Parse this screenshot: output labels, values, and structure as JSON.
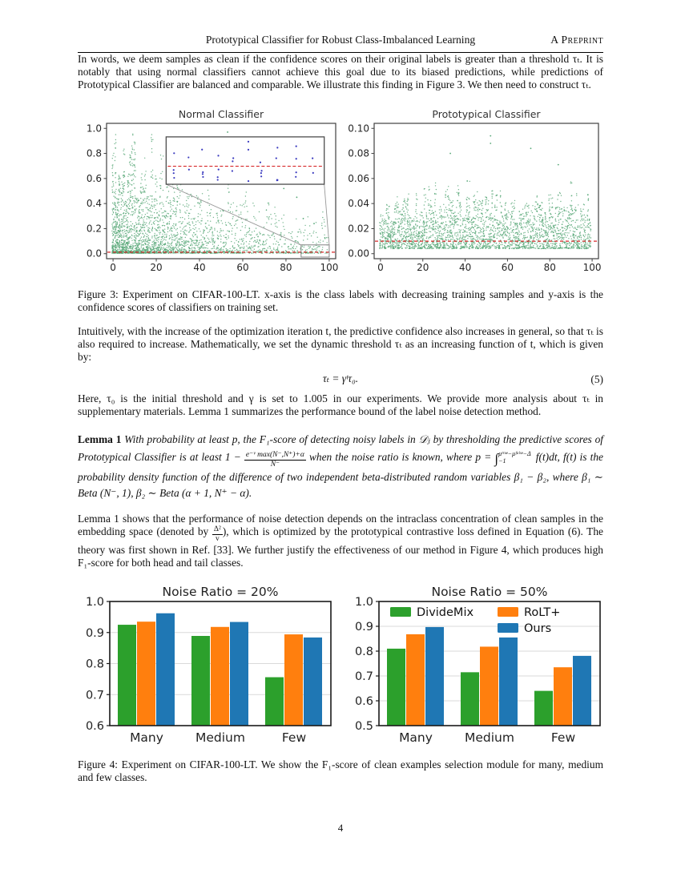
{
  "header": {
    "title": "Prototypical Classifier for Robust Class-Imbalanced Learning",
    "preprint": "A Preprint"
  },
  "body": {
    "p1": "In words, we deem samples as clean if the confidence scores on their original labels is greater than a threshold τₜ. It is notably that using normal classifiers cannot achieve this goal due to its biased predictions, while predictions of Prototypical Classifier are balanced and comparable. We illustrate this finding in Figure 3. We then need to construct τₜ.",
    "p2": "Intuitively, with the increase of the optimization iteration t, the predictive confidence also increases in general, so that τₜ is also required to increase. Mathematically, we set the dynamic threshold τₜ as an increasing function of t, which is given by:",
    "equation": {
      "body": "τₜ = γᵗτ₀.",
      "number": "(5)"
    },
    "p3": "Here, τ₀ is the initial threshold and γ is set to 1.005 in our experiments. We provide more analysis about τₜ in supplementary materials. Lemma 1 summarizes the performance bound of the label noise detection method."
  },
  "lemma": {
    "label": "Lemma 1",
    "part1": " With probability at least p, the F₁-score of detecting noisy labels in 𝒟ⱼ by thresholding the predictive scores of Prototypical Classifier is at least 1 − ",
    "frac_num": "e⁻ᵛ max(N⁻,N⁺)+α",
    "frac_den": "N⁻",
    "part2": " when the noise ratio is known, where p = ",
    "int_symbol": "∫",
    "int_sup": "μᵗʳᵘᵉ−μᶠᵃˡˢᵉ−Δ",
    "int_sub": "−1",
    "part3": " f(t)dt, f(t) is the probability density function of the difference of two independent beta-distributed random variables β₁ − β₂, where β₁ ∼ Beta (N⁻, 1), β₂ ∼ Beta (α + 1, N⁺ − α)."
  },
  "p4": {
    "part1": "Lemma 1 shows that the performance of noise detection depends on the intraclass concentration of clean samples in the embedding space (denoted by ",
    "frac_num": "Δ²",
    "frac_den": "v",
    "part2": "), which is optimized by the prototypical contrastive loss defined in Equation (6). The theory was first shown in Ref. [33]. We further justify the effectiveness of our method in Figure 4, which produces high F₁-score for both head and tail classes."
  },
  "figure3": {
    "caption": "Figure 3: Experiment on CIFAR-100-LT. x-axis is the class labels with decreasing training samples and y-axis is the confidence scores of classifiers on training set."
  },
  "figure4": {
    "caption": "Figure 4: Experiment on CIFAR-100-LT. We show the F₁-score of clean examples selection module for many, medium and few classes."
  },
  "page_number": "4",
  "chart_data": [
    {
      "id": "fig3-left",
      "type": "scatter",
      "title": "Normal Classifier",
      "xticks": [
        0,
        20,
        40,
        60,
        80,
        100
      ],
      "ytick_labels": [
        "0.0",
        "0.2",
        "0.4",
        "0.6",
        "0.8",
        "1.0"
      ],
      "yticks": [
        0.0,
        0.2,
        0.4,
        0.6,
        0.8,
        1.0
      ],
      "xlim": [
        -3,
        103
      ],
      "ylim": [
        -0.04,
        1.04
      ],
      "point_color": "#57a777",
      "threshold": {
        "y": 0.012,
        "color": "#d62728",
        "style": "dashed"
      },
      "outliers": [
        [
          53,
          0.97
        ],
        [
          66,
          0.62
        ],
        [
          73,
          0.87
        ],
        [
          73,
          0.75
        ],
        [
          79,
          0.52
        ],
        [
          80,
          0.62
        ],
        [
          85,
          0.45
        ],
        [
          88,
          0.28
        ],
        [
          93,
          0.24
        ]
      ],
      "description": "Confidence of classifier per class (100 classes); point density and maximum confidence decrease with class index; dense mass near 0 with red dashed threshold ~0.01; inset zooms region x∈[87,100], y∈[0,0.07] showing points around threshold",
      "inset": {
        "region_x": [
          87,
          100
        ],
        "region_y": [
          0,
          0.07
        ],
        "point_color": "#3b3bbf",
        "line_color": "#d62728"
      }
    },
    {
      "id": "fig3-right",
      "type": "scatter",
      "title": "Prototypical Classifier",
      "xticks": [
        0,
        20,
        40,
        60,
        80,
        100
      ],
      "ytick_labels": [
        "0.00",
        "0.02",
        "0.04",
        "0.06",
        "0.08",
        "0.10"
      ],
      "yticks": [
        0.0,
        0.02,
        0.04,
        0.06,
        0.08,
        0.1
      ],
      "xlim": [
        -3,
        103
      ],
      "ylim": [
        -0.004,
        0.104
      ],
      "point_color": "#57a777",
      "threshold": {
        "y": 0.01,
        "color": "#d62728",
        "style": "dashed"
      },
      "outliers": [
        [
          52,
          0.094
        ],
        [
          52,
          0.088
        ],
        [
          33,
          0.08
        ],
        [
          71,
          0.084
        ],
        [
          84,
          0.071
        ],
        [
          41,
          0.058
        ],
        [
          98,
          0.047
        ]
      ],
      "description": "Balanced confidences: columns span ~0.005–0.06 uniformly across all 100 classes with red dashed threshold at 0.01"
    },
    {
      "id": "fig4-left",
      "type": "bar",
      "title": "Noise Ratio = 20%",
      "categories": [
        "Many",
        "Medium",
        "Few"
      ],
      "series": [
        {
          "name": "DivideMix",
          "color": "#2ca02c",
          "values": [
            0.925,
            0.889,
            0.756
          ]
        },
        {
          "name": "RoLT+",
          "color": "#ff7f0e",
          "values": [
            0.935,
            0.918,
            0.894
          ]
        },
        {
          "name": "Ours",
          "color": "#1f77b4",
          "values": [
            0.962,
            0.934,
            0.884
          ]
        }
      ],
      "ylim": [
        0.6,
        1.0
      ],
      "yticks": [
        0.6,
        0.7,
        0.8,
        0.9,
        1.0
      ],
      "legend": false,
      "grid": true,
      "ylabel": "",
      "xlabel": ""
    },
    {
      "id": "fig4-right",
      "type": "bar",
      "title": "Noise Ratio = 50%",
      "categories": [
        "Many",
        "Medium",
        "Few"
      ],
      "series": [
        {
          "name": "DivideMix",
          "color": "#2ca02c",
          "values": [
            0.81,
            0.715,
            0.64
          ]
        },
        {
          "name": "RoLT+",
          "color": "#ff7f0e",
          "values": [
            0.868,
            0.818,
            0.735
          ]
        },
        {
          "name": "Ours",
          "color": "#1f77b4",
          "values": [
            0.897,
            0.855,
            0.781
          ]
        }
      ],
      "ylim": [
        0.5,
        1.0
      ],
      "yticks": [
        0.5,
        0.6,
        0.7,
        0.8,
        0.9,
        1.0
      ],
      "legend": true,
      "legend_position": "upper-center",
      "grid": true,
      "ylabel": "",
      "xlabel": ""
    }
  ]
}
